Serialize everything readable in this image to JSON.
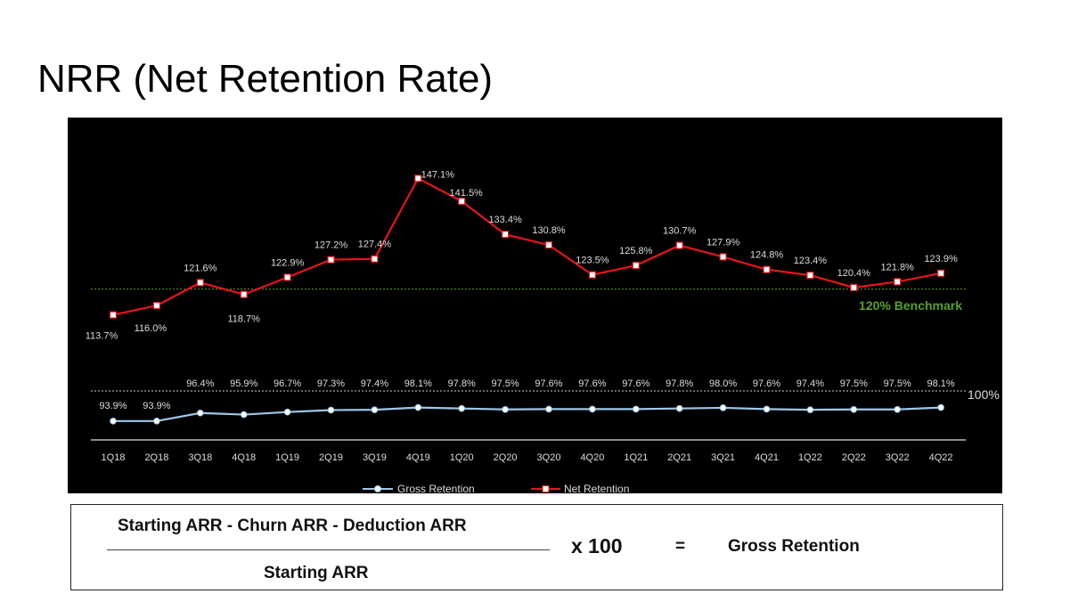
{
  "page": {
    "title": "NRR (Net Retention Rate)"
  },
  "chart_data": {
    "type": "line",
    "categories": [
      "1Q18",
      "2Q18",
      "3Q18",
      "4Q18",
      "1Q19",
      "2Q19",
      "3Q19",
      "4Q19",
      "1Q20",
      "2Q20",
      "3Q20",
      "4Q20",
      "1Q21",
      "2Q21",
      "3Q21",
      "4Q21",
      "1Q22",
      "2Q22",
      "3Q22",
      "4Q22"
    ],
    "series": [
      {
        "name": "Net Retention",
        "color": "#e8141c",
        "marker": "square",
        "values": [
          113.7,
          116.0,
          121.6,
          118.7,
          122.9,
          127.2,
          127.4,
          147.1,
          141.5,
          133.4,
          130.8,
          123.5,
          125.8,
          130.7,
          127.9,
          124.8,
          123.4,
          120.4,
          121.8,
          123.9
        ],
        "labels": [
          "113.7%",
          "116.0%",
          "121.6%",
          "118.7%",
          "122.9%",
          "127.2%",
          "127.4%",
          "147.1%",
          "141.5%",
          "133.4%",
          "130.8%",
          "123.5%",
          "125.8%",
          "130.7%",
          "127.9%",
          "124.8%",
          "123.4%",
          "120.4%",
          "121.8%",
          "123.9%"
        ]
      },
      {
        "name": "Gross Retention",
        "color": "#9fc7ea",
        "marker": "circle",
        "values": [
          93.9,
          93.9,
          96.4,
          95.9,
          96.7,
          97.3,
          97.4,
          98.1,
          97.8,
          97.5,
          97.6,
          97.6,
          97.6,
          97.8,
          98.0,
          97.6,
          97.4,
          97.5,
          97.5,
          98.1
        ],
        "labels": [
          "93.9%",
          "93.9%",
          "96.4%",
          "95.9%",
          "96.7%",
          "97.3%",
          "97.4%",
          "98.1%",
          "97.8%",
          "97.5%",
          "97.6%",
          "97.6%",
          "97.6%",
          "97.8%",
          "98.0%",
          "97.6%",
          "97.4%",
          "97.5%",
          "97.5%",
          "98.1%"
        ]
      }
    ],
    "reference_lines": [
      {
        "value": 120,
        "label": "120% Benchmark",
        "color": "#5aa02c"
      },
      {
        "value": 100,
        "label": "100%",
        "color": "#cccccc"
      }
    ],
    "legend": [
      "Gross Retention",
      "Net Retention"
    ],
    "legend_position": "bottom",
    "grid": false,
    "xlabel": "",
    "ylabel": ""
  },
  "formula": {
    "numerator": "Starting ARR - Churn ARR - Deduction ARR",
    "denominator": "Starting ARR",
    "multiplier": "x 100",
    "equals": "=",
    "result": "Gross Retention"
  }
}
